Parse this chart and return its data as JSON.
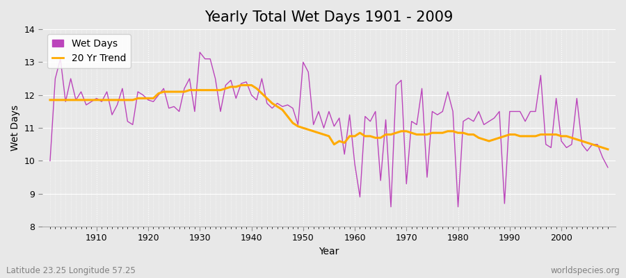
{
  "title": "Yearly Total Wet Days 1901 - 2009",
  "xlabel": "Year",
  "ylabel": "Wet Days",
  "footer_left": "Latitude 23.25 Longitude 57.25",
  "footer_right": "worldspecies.org",
  "ylim": [
    8,
    14
  ],
  "yticks": [
    8,
    9,
    10,
    11,
    12,
    13,
    14
  ],
  "xticks": [
    1910,
    1920,
    1930,
    1940,
    1950,
    1960,
    1970,
    1980,
    1990,
    2000
  ],
  "years": [
    1901,
    1902,
    1903,
    1904,
    1905,
    1906,
    1907,
    1908,
    1909,
    1910,
    1911,
    1912,
    1913,
    1914,
    1915,
    1916,
    1917,
    1918,
    1919,
    1920,
    1921,
    1922,
    1923,
    1924,
    1925,
    1926,
    1927,
    1928,
    1929,
    1930,
    1931,
    1932,
    1933,
    1934,
    1935,
    1936,
    1937,
    1938,
    1939,
    1940,
    1941,
    1942,
    1943,
    1944,
    1945,
    1946,
    1947,
    1948,
    1949,
    1950,
    1951,
    1952,
    1953,
    1954,
    1955,
    1956,
    1957,
    1958,
    1959,
    1960,
    1961,
    1962,
    1963,
    1964,
    1965,
    1966,
    1967,
    1968,
    1969,
    1970,
    1971,
    1972,
    1973,
    1974,
    1975,
    1976,
    1977,
    1978,
    1979,
    1980,
    1981,
    1982,
    1983,
    1984,
    1985,
    1986,
    1987,
    1988,
    1989,
    1990,
    1991,
    1992,
    1993,
    1994,
    1995,
    1996,
    1997,
    1998,
    1999,
    2000,
    2001,
    2002,
    2003,
    2004,
    2005,
    2006,
    2007,
    2008,
    2009
  ],
  "wet_days": [
    10.0,
    12.5,
    13.1,
    11.8,
    12.5,
    11.85,
    12.1,
    11.7,
    11.8,
    11.9,
    11.8,
    12.1,
    11.4,
    11.7,
    12.2,
    11.2,
    11.1,
    12.1,
    12.0,
    11.85,
    11.8,
    12.0,
    12.2,
    11.6,
    11.65,
    11.5,
    12.2,
    12.5,
    11.5,
    13.3,
    13.1,
    13.1,
    12.5,
    11.5,
    12.3,
    12.45,
    11.9,
    12.35,
    12.4,
    12.0,
    11.85,
    12.5,
    11.75,
    11.6,
    11.75,
    11.65,
    11.7,
    11.6,
    11.1,
    13.0,
    12.7,
    11.1,
    11.5,
    11.0,
    11.5,
    11.05,
    11.3,
    10.2,
    11.4,
    9.9,
    8.9,
    11.35,
    11.2,
    11.5,
    9.4,
    11.25,
    8.6,
    12.3,
    12.45,
    9.3,
    11.2,
    11.1,
    12.2,
    9.5,
    11.5,
    11.4,
    11.5,
    12.1,
    11.5,
    8.6,
    11.2,
    11.3,
    11.2,
    11.5,
    11.1,
    11.2,
    11.3,
    11.5,
    8.7,
    11.5,
    11.5,
    11.5,
    11.2,
    11.5,
    11.5,
    12.6,
    10.5,
    10.4,
    11.9,
    10.6,
    10.4,
    10.5,
    11.9,
    10.5,
    10.3,
    10.5,
    10.5,
    10.1,
    9.8
  ],
  "trend": [
    11.85,
    11.85,
    11.85,
    11.85,
    11.85,
    11.85,
    11.85,
    11.85,
    11.85,
    11.85,
    11.85,
    11.85,
    11.85,
    11.85,
    11.85,
    11.85,
    11.85,
    11.9,
    11.9,
    11.9,
    11.9,
    12.05,
    12.1,
    12.1,
    12.1,
    12.1,
    12.1,
    12.15,
    12.15,
    12.15,
    12.15,
    12.15,
    12.15,
    12.15,
    12.2,
    12.25,
    12.25,
    12.3,
    12.3,
    12.3,
    12.2,
    12.05,
    11.9,
    11.75,
    11.65,
    11.55,
    11.35,
    11.15,
    11.05,
    11.0,
    10.95,
    10.9,
    10.85,
    10.8,
    10.75,
    10.5,
    10.6,
    10.55,
    10.75,
    10.75,
    10.85,
    10.75,
    10.75,
    10.7,
    10.7,
    10.8,
    10.8,
    10.85,
    10.9,
    10.9,
    10.85,
    10.8,
    10.8,
    10.8,
    10.85,
    10.85,
    10.85,
    10.9,
    10.9,
    10.85,
    10.85,
    10.8,
    10.8,
    10.7,
    10.65,
    10.6,
    10.65,
    10.7,
    10.75,
    10.8,
    10.8,
    10.75,
    10.75,
    10.75,
    10.75,
    10.8,
    10.8,
    10.8,
    10.8,
    10.75,
    10.75,
    10.7,
    10.65,
    10.6,
    10.55,
    10.5,
    10.45,
    10.4,
    10.35
  ],
  "wet_days_color": "#bb44bb",
  "trend_color": "#ffaa00",
  "bg_color": "#e8e8e8",
  "plot_bg_color": "#e8e8e8",
  "grid_color": "#ffffff",
  "title_fontsize": 15,
  "label_fontsize": 10,
  "tick_fontsize": 9,
  "footer_fontsize": 8.5
}
